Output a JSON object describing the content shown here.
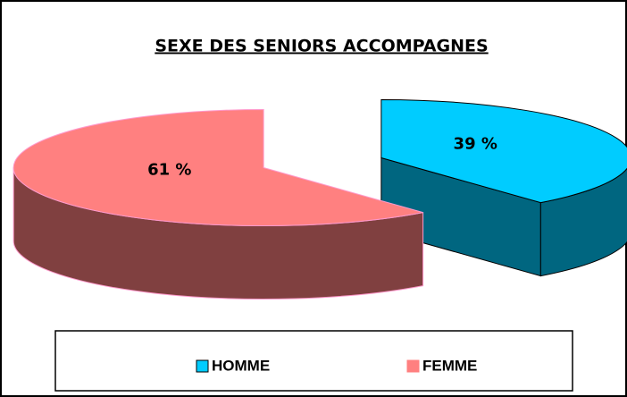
{
  "chart_data": {
    "type": "pie3d",
    "title": "SEXE DES SENIORS ACCOMPAGNES",
    "series": [
      {
        "name": "HOMME",
        "value": 39,
        "value_label": "39 %",
        "color": "#00ccff",
        "side_color": "#006680"
      },
      {
        "name": "FEMME",
        "value": 61,
        "value_label": "61 %",
        "color": "#ff8080",
        "side_color": "#804040"
      }
    ],
    "legend": "bottom"
  }
}
